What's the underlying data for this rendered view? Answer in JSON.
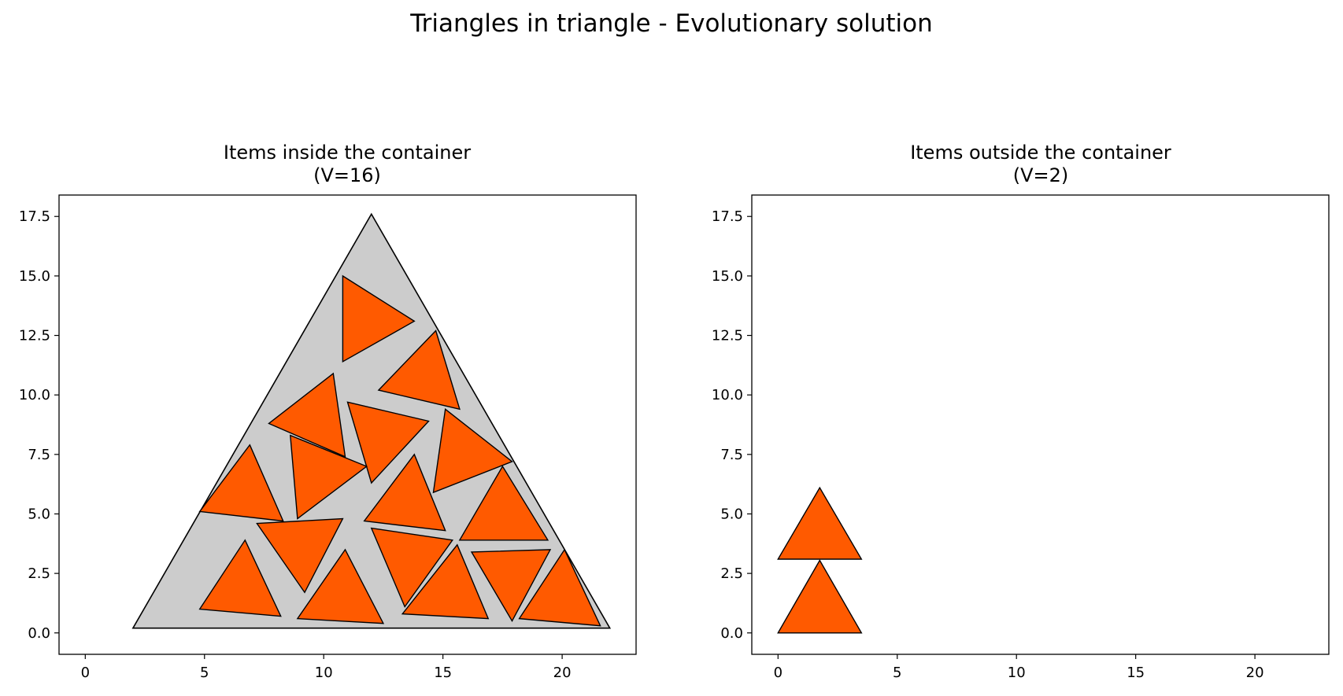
{
  "figure_title": "Triangles in triangle - Evolutionary solution",
  "colors": {
    "item_fill": "#ff5a00",
    "container_fill": "#cccccc",
    "edge": "#000000",
    "background": "#ffffff"
  },
  "chart_data": [
    {
      "type": "polygon-packing",
      "title_line1": "Items inside the container",
      "title_line2": "(V=16)",
      "xlim": [
        -1.1,
        23.1
      ],
      "ylim": [
        -0.9,
        18.4
      ],
      "xticks": [
        0,
        5,
        10,
        15,
        20
      ],
      "yticks": [
        0.0,
        2.5,
        5.0,
        7.5,
        10.0,
        12.5,
        15.0,
        17.5
      ],
      "container": [
        [
          2.0,
          0.2
        ],
        [
          12.0,
          17.6
        ],
        [
          22.0,
          0.2
        ]
      ],
      "items": [
        [
          [
            10.8,
            15.0
          ],
          [
            13.8,
            13.1
          ],
          [
            10.8,
            11.4
          ]
        ],
        [
          [
            14.7,
            12.7
          ],
          [
            15.7,
            9.4
          ],
          [
            12.3,
            10.2
          ]
        ],
        [
          [
            10.4,
            10.9
          ],
          [
            10.9,
            7.4
          ],
          [
            7.7,
            8.8
          ]
        ],
        [
          [
            11.0,
            9.7
          ],
          [
            14.4,
            8.9
          ],
          [
            12.0,
            6.3
          ]
        ],
        [
          [
            15.1,
            9.4
          ],
          [
            17.9,
            7.2
          ],
          [
            14.6,
            5.9
          ]
        ],
        [
          [
            8.6,
            8.3
          ],
          [
            11.8,
            7.0
          ],
          [
            8.9,
            4.8
          ]
        ],
        [
          [
            6.9,
            7.9
          ],
          [
            8.3,
            4.7
          ],
          [
            4.8,
            5.1
          ]
        ],
        [
          [
            13.8,
            7.5
          ],
          [
            15.1,
            4.3
          ],
          [
            11.7,
            4.7
          ]
        ],
        [
          [
            17.5,
            7.0
          ],
          [
            19.4,
            3.9
          ],
          [
            15.7,
            3.9
          ]
        ],
        [
          [
            7.2,
            4.6
          ],
          [
            10.8,
            4.8
          ],
          [
            9.2,
            1.7
          ]
        ],
        [
          [
            12.0,
            4.4
          ],
          [
            15.4,
            3.9
          ],
          [
            13.4,
            1.1
          ]
        ],
        [
          [
            6.7,
            3.9
          ],
          [
            8.2,
            0.7
          ],
          [
            4.8,
            1.0
          ]
        ],
        [
          [
            10.9,
            3.5
          ],
          [
            12.5,
            0.4
          ],
          [
            8.9,
            0.6
          ]
        ],
        [
          [
            15.6,
            3.7
          ],
          [
            16.9,
            0.6
          ],
          [
            13.3,
            0.8
          ]
        ],
        [
          [
            16.2,
            3.4
          ],
          [
            19.5,
            3.5
          ],
          [
            17.9,
            0.5
          ]
        ],
        [
          [
            20.1,
            3.5
          ],
          [
            21.6,
            0.3
          ],
          [
            18.2,
            0.6
          ]
        ]
      ]
    },
    {
      "type": "polygon-packing",
      "title_line1": "Items outside the container",
      "title_line2": "(V=2)",
      "xlim": [
        -1.1,
        23.1
      ],
      "ylim": [
        -0.9,
        18.4
      ],
      "xticks": [
        0,
        5,
        10,
        15,
        20
      ],
      "yticks": [
        0.0,
        2.5,
        5.0,
        7.5,
        10.0,
        12.5,
        15.0,
        17.5
      ],
      "items": [
        [
          [
            0.0,
            3.1
          ],
          [
            3.5,
            3.1
          ],
          [
            1.75,
            6.1
          ]
        ],
        [
          [
            0.0,
            0.0
          ],
          [
            3.5,
            0.0
          ],
          [
            1.75,
            3.05
          ]
        ]
      ]
    }
  ]
}
